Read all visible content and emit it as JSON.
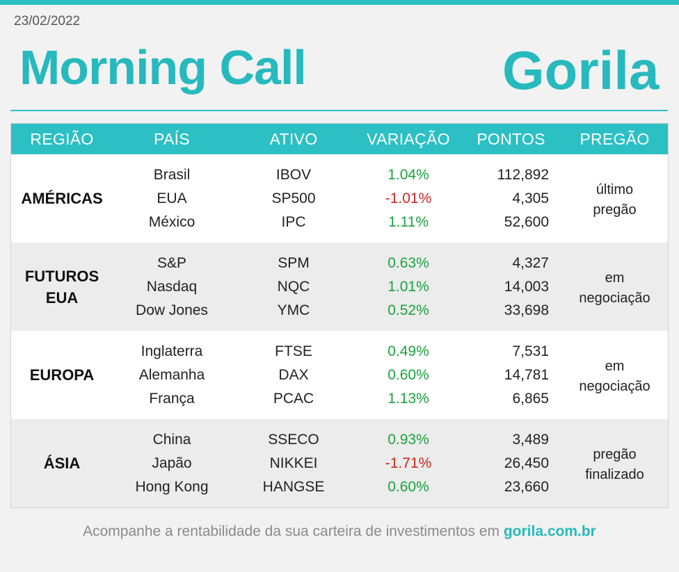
{
  "header": {
    "date": "23/02/2022",
    "title": "Morning Call",
    "logo_text": "Gorila"
  },
  "colors": {
    "accent": "#2cc0c5",
    "positive": "#1aa33d",
    "negative": "#d1251f"
  },
  "table": {
    "headers": {
      "region": "REGIÃO",
      "country": "PAÍS",
      "asset": "ATIVO",
      "change": "VARIAÇÃO",
      "points": "PONTOS",
      "session": "PREGÃO"
    },
    "groups": [
      {
        "region_l1": "AMÉRICAS",
        "region_l2": "",
        "status_l1": "último",
        "status_l2": "pregão",
        "rows": [
          {
            "country": "Brasil",
            "asset": "IBOV",
            "change": "1.04%",
            "points": "112,892"
          },
          {
            "country": "EUA",
            "asset": "SP500",
            "change": "-1.01%",
            "points": "4,305"
          },
          {
            "country": "México",
            "asset": "IPC",
            "change": "1.11%",
            "points": "52,600"
          }
        ]
      },
      {
        "region_l1": "FUTUROS",
        "region_l2": "EUA",
        "status_l1": "em",
        "status_l2": "negociação",
        "rows": [
          {
            "country": "S&P",
            "asset": "SPM",
            "change": "0.63%",
            "points": "4,327"
          },
          {
            "country": "Nasdaq",
            "asset": "NQC",
            "change": "1.01%",
            "points": "14,003"
          },
          {
            "country": "Dow Jones",
            "asset": "YMC",
            "change": "0.52%",
            "points": "33,698"
          }
        ]
      },
      {
        "region_l1": "EUROPA",
        "region_l2": "",
        "status_l1": "em",
        "status_l2": "negociação",
        "rows": [
          {
            "country": "Inglaterra",
            "asset": "FTSE",
            "change": "0.49%",
            "points": "7,531"
          },
          {
            "country": "Alemanha",
            "asset": "DAX",
            "change": "0.60%",
            "points": "14,781"
          },
          {
            "country": "França",
            "asset": "PCAC",
            "change": "1.13%",
            "points": "6,865"
          }
        ]
      },
      {
        "region_l1": "ÁSIA",
        "region_l2": "",
        "status_l1": "pregão",
        "status_l2": "finalizado",
        "rows": [
          {
            "country": "China",
            "asset": "SSECO",
            "change": "0.93%",
            "points": "3,489"
          },
          {
            "country": "Japão",
            "asset": "NIKKEI",
            "change": "-1.71%",
            "points": "26,450"
          },
          {
            "country": "Hong Kong",
            "asset": "HANGSE",
            "change": "0.60%",
            "points": "23,660"
          }
        ]
      }
    ]
  },
  "footer": {
    "text": "Acompanhe a rentabilidade da sua carteira de investimentos em",
    "link": "gorila.com.br"
  }
}
